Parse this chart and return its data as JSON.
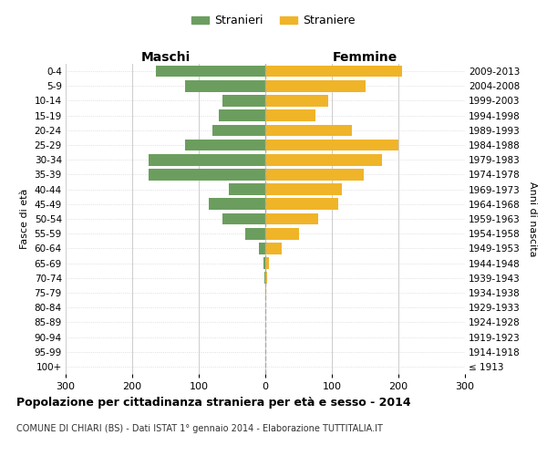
{
  "age_groups": [
    "100+",
    "95-99",
    "90-94",
    "85-89",
    "80-84",
    "75-79",
    "70-74",
    "65-69",
    "60-64",
    "55-59",
    "50-54",
    "45-49",
    "40-44",
    "35-39",
    "30-34",
    "25-29",
    "20-24",
    "15-19",
    "10-14",
    "5-9",
    "0-4"
  ],
  "birth_years": [
    "≤ 1913",
    "1914-1918",
    "1919-1923",
    "1924-1928",
    "1929-1933",
    "1934-1938",
    "1939-1943",
    "1944-1948",
    "1949-1953",
    "1954-1958",
    "1959-1963",
    "1964-1968",
    "1969-1973",
    "1974-1978",
    "1979-1983",
    "1984-1988",
    "1989-1993",
    "1994-1998",
    "1999-2003",
    "2004-2008",
    "2009-2013"
  ],
  "maschi": [
    0,
    0,
    0,
    0,
    0,
    0,
    2,
    3,
    10,
    30,
    65,
    85,
    55,
    175,
    175,
    120,
    80,
    70,
    65,
    120,
    165
  ],
  "femmine": [
    0,
    0,
    0,
    0,
    0,
    2,
    3,
    5,
    25,
    50,
    80,
    110,
    115,
    148,
    175,
    200,
    130,
    75,
    95,
    150,
    205
  ],
  "male_color": "#6b9e5e",
  "female_color": "#f0b428",
  "background_color": "#ffffff",
  "grid_color": "#cccccc",
  "title": "Popolazione per cittadinanza straniera per età e sesso - 2014",
  "subtitle": "COMUNE DI CHIARI (BS) - Dati ISTAT 1° gennaio 2014 - Elaborazione TUTTITALIA.IT",
  "xlabel_left": "Maschi",
  "xlabel_right": "Femmine",
  "ylabel_left": "Fasce di età",
  "ylabel_right": "Anni di nascita",
  "legend_male": "Stranieri",
  "legend_female": "Straniere",
  "xlim": 300
}
